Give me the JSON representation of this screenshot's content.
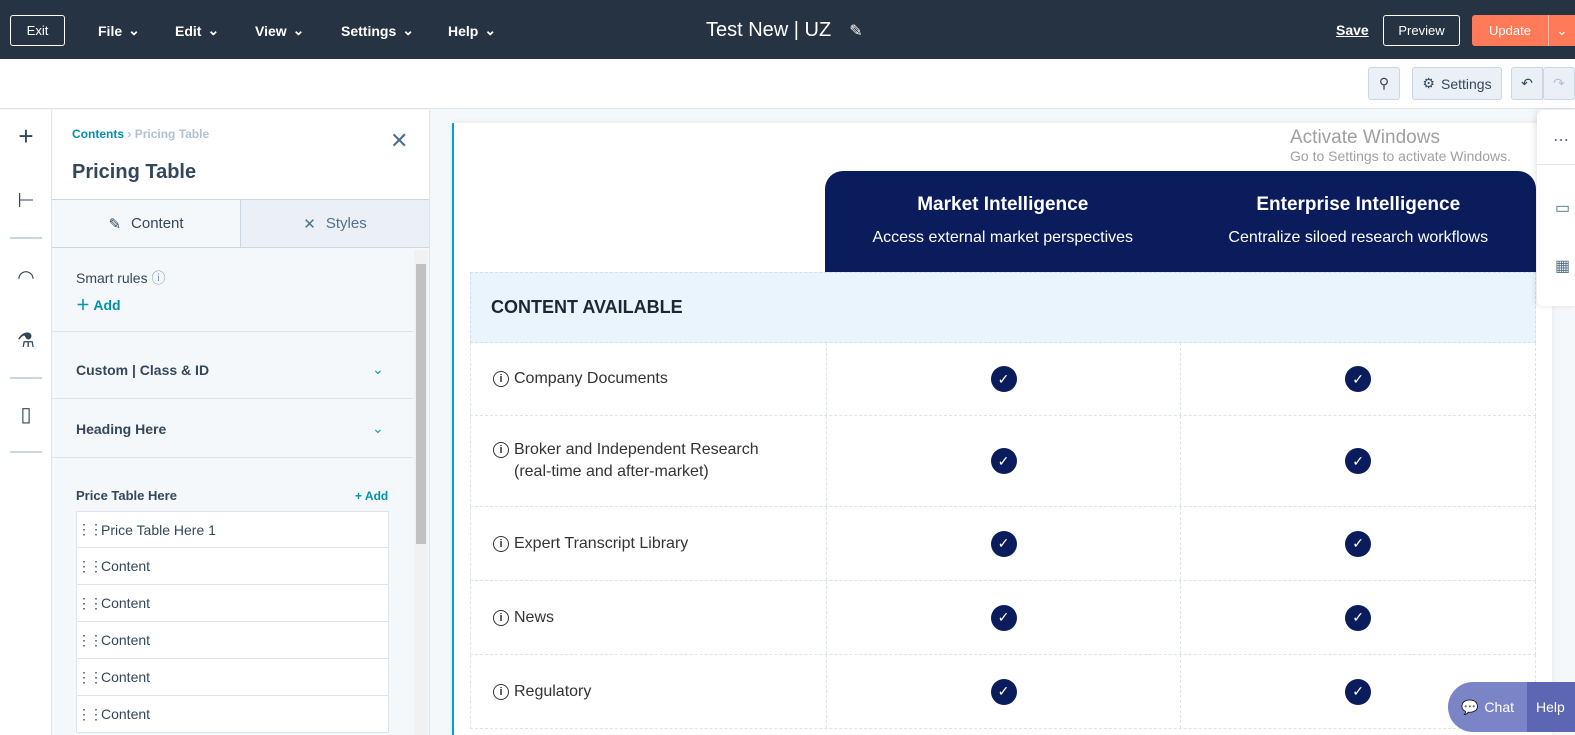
{
  "topbar": {
    "exit": "Exit",
    "menus": [
      "File",
      "Edit",
      "View",
      "Settings",
      "Help"
    ],
    "title": "Test New | UZ",
    "save": "Save",
    "preview": "Preview",
    "update": "Update"
  },
  "toolbar": {
    "settings": "Settings"
  },
  "panel": {
    "breadcrumb": {
      "root": "Contents",
      "current": "Pricing Table"
    },
    "title": "Pricing Table",
    "tabs": [
      "Content",
      "Styles"
    ],
    "smart_rules": "Smart rules",
    "add": "Add",
    "sections": [
      "Custom | Class & ID",
      "Heading Here"
    ],
    "price_table": "Price Table Here",
    "price_add": "+ Add",
    "items": [
      "Price Table Here 1",
      "Content",
      "Content",
      "Content",
      "Content",
      "Content"
    ]
  },
  "table": {
    "plans": [
      {
        "name": "Market Intelligence",
        "desc": "Access external market perspectives"
      },
      {
        "name": "Enterprise Intelligence",
        "desc": "Centralize siloed research workflows"
      }
    ],
    "section": "CONTENT AVAILABLE",
    "rows": [
      {
        "l1": "Company Documents",
        "l2": ""
      },
      {
        "l1": "Broker and Independent Research",
        "l2": "(real-time and after-market)"
      },
      {
        "l1": "Expert Transcript Library",
        "l2": ""
      },
      {
        "l1": "News",
        "l2": ""
      },
      {
        "l1": "Regulatory",
        "l2": ""
      }
    ]
  },
  "watermark": {
    "line1": "Activate Windows",
    "line2": "Go to Settings to activate Windows."
  },
  "chat": {
    "chat": "Chat",
    "help": "Help"
  },
  "colors": {
    "topbar": "#253342",
    "accent": "#ff7a59",
    "plan_header": "#0b1c5c",
    "teal": "#00a4bd"
  }
}
